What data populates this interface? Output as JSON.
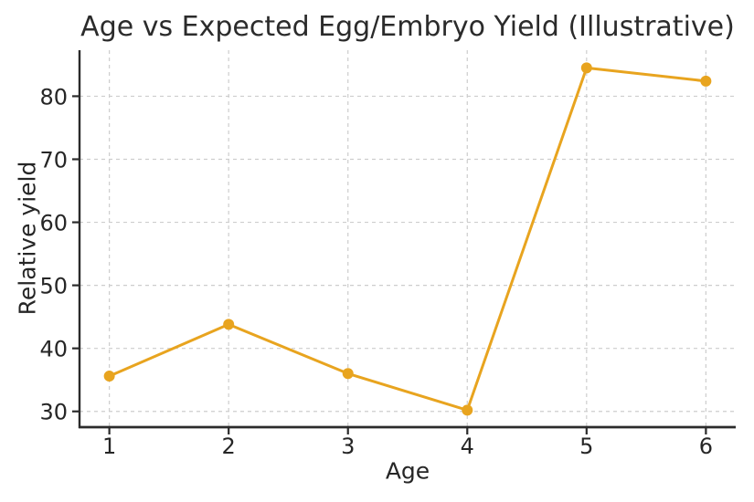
{
  "chart_data": {
    "type": "line",
    "title": "Age vs Expected Egg/Embryo Yield (Illustrative)",
    "xlabel": "Age",
    "ylabel": "Relative yield",
    "x": [
      1,
      2,
      3,
      4,
      5,
      6
    ],
    "y": [
      35.6,
      43.8,
      36.0,
      30.2,
      84.5,
      82.4
    ],
    "xticks": [
      1,
      2,
      3,
      4,
      5,
      6
    ],
    "yticks": [
      30,
      40,
      50,
      60,
      70,
      80
    ],
    "xlim": [
      0.75,
      6.25
    ],
    "ylim": [
      27.5,
      87.3
    ],
    "grid": true,
    "grid_style": "dashed",
    "legend": false,
    "marker": "circle",
    "line_color": "#E8A41F",
    "grid_color": "#CDCDCD",
    "spine_color": "#2B2B2B",
    "text_color": "#262626",
    "background_color": "#FFFFFF"
  }
}
